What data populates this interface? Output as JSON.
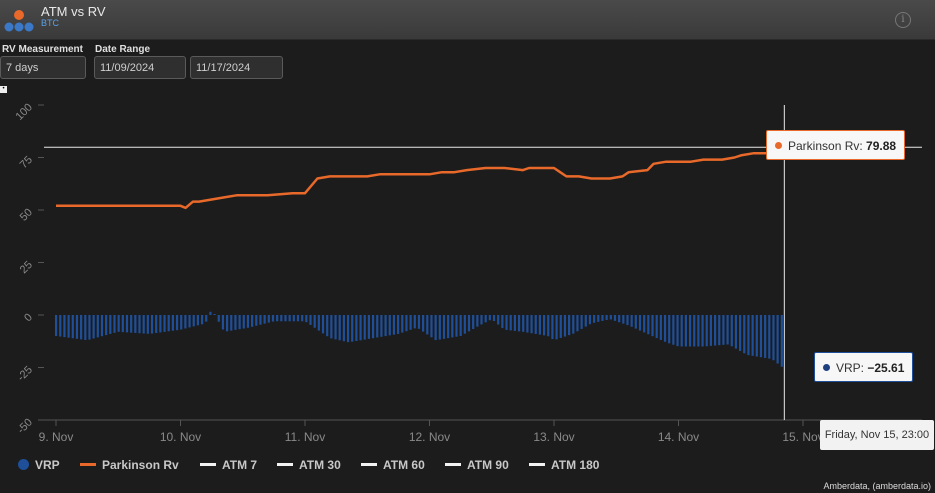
{
  "header": {
    "title": "ATM vs RV",
    "subtitle": "BTC",
    "info_icon": "info-icon"
  },
  "controls": {
    "rv_label": "RV Measurement",
    "rv_value": "7 days",
    "date_label": "Date Range",
    "date_start": "11/09/2024",
    "date_end": "11/17/2024"
  },
  "colors": {
    "vrp": "#1f4f99",
    "parkinson": "#e8692a",
    "atm": "#f2f2f2",
    "grid": "#2e2e2e",
    "axis_text": "#8a8a8a"
  },
  "chart_data": {
    "type": "line",
    "x_tick_labels": [
      "9. Nov",
      "10. Nov",
      "11. Nov",
      "12. Nov",
      "13. Nov",
      "14. Nov",
      "15. Nov"
    ],
    "ylim": [
      -50,
      100
    ],
    "y_ticks": [
      -50,
      -25,
      0,
      25,
      50,
      75,
      100
    ],
    "series": [
      {
        "name": "Parkinson Rv",
        "kind": "line",
        "x_days": [
          0,
          0.5,
          1,
          1.04,
          1.1,
          1.15,
          1.25,
          1.35,
          1.45,
          1.55,
          1.7,
          1.9,
          2.0,
          2.1,
          2.2,
          2.3,
          2.5,
          2.6,
          2.7,
          2.9,
          3.0,
          3.1,
          3.2,
          3.3,
          3.45,
          3.5,
          3.6,
          3.75,
          3.8,
          3.9,
          4.0,
          4.05,
          4.1,
          4.2,
          4.3,
          4.45,
          4.55,
          4.6,
          4.75,
          4.8,
          4.9,
          5.0,
          5.1,
          5.2,
          5.35,
          5.45,
          5.5,
          5.6,
          5.75,
          5.8,
          5.85
        ],
        "values": [
          52,
          52,
          52,
          51,
          54,
          54,
          55,
          56,
          57,
          57,
          57,
          58,
          58,
          65,
          66,
          66,
          66,
          67,
          67,
          67,
          67,
          68,
          68,
          69,
          70,
          70,
          70,
          69,
          70,
          70,
          70,
          68,
          66,
          66,
          65,
          65,
          66,
          68,
          69,
          72,
          73,
          73,
          73,
          74,
          74,
          75,
          76,
          77,
          77,
          77,
          79.88
        ]
      },
      {
        "name": "VRP",
        "kind": "bar",
        "x_days": [
          0,
          0.25,
          0.5,
          0.75,
          1.0,
          1.2,
          1.25,
          1.35,
          1.45,
          1.55,
          1.75,
          2.0,
          2.2,
          2.35,
          2.55,
          2.75,
          2.9,
          3.05,
          3.25,
          3.4,
          3.5,
          3.6,
          3.75,
          3.95,
          4.0,
          4.15,
          4.3,
          4.45,
          4.6,
          4.75,
          4.9,
          5.0,
          5.2,
          5.4,
          5.55,
          5.75,
          5.85
        ],
        "values": [
          -10,
          -12,
          -8,
          -9,
          -7,
          -4,
          3,
          -8,
          -7,
          -6,
          -3,
          -3,
          -11,
          -13,
          -11,
          -9,
          -6,
          -12,
          -10,
          -5,
          -2,
          -7,
          -8,
          -10,
          -12,
          -9,
          -4,
          -2,
          -5,
          -9,
          -13,
          -15,
          -15,
          -14,
          -19,
          -21,
          -25.61
        ]
      },
      {
        "name": "ATM 7",
        "kind": "line"
      },
      {
        "name": "ATM 30",
        "kind": "line"
      },
      {
        "name": "ATM 60",
        "kind": "line"
      },
      {
        "name": "ATM 90",
        "kind": "line"
      },
      {
        "name": "ATM 180",
        "kind": "line"
      }
    ],
    "crosshair_value": 79.88,
    "legend_position": "bottom",
    "grid": false
  },
  "tooltips": {
    "parkinson_label": "Parkinson Rv: ",
    "parkinson_value": "79.88",
    "vrp_label": "VRP: ",
    "vrp_value": "−25.61",
    "date": "Friday, Nov 15, 23:00"
  },
  "legend": [
    "VRP",
    "Parkinson Rv",
    "ATM 7",
    "ATM 30",
    "ATM 60",
    "ATM 90",
    "ATM 180"
  ],
  "credit": "Amberdata, (amberdata.io)"
}
